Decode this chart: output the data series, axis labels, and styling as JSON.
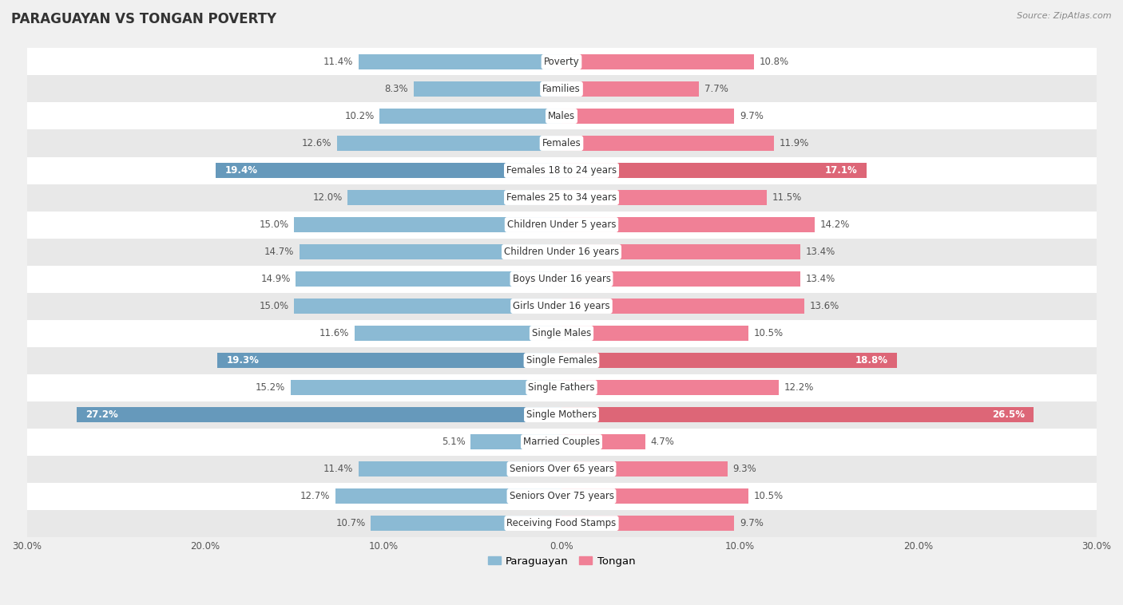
{
  "title": "PARAGUAYAN VS TONGAN POVERTY",
  "source": "Source: ZipAtlas.com",
  "categories": [
    "Poverty",
    "Families",
    "Males",
    "Females",
    "Females 18 to 24 years",
    "Females 25 to 34 years",
    "Children Under 5 years",
    "Children Under 16 years",
    "Boys Under 16 years",
    "Girls Under 16 years",
    "Single Males",
    "Single Females",
    "Single Fathers",
    "Single Mothers",
    "Married Couples",
    "Seniors Over 65 years",
    "Seniors Over 75 years",
    "Receiving Food Stamps"
  ],
  "paraguayan": [
    11.4,
    8.3,
    10.2,
    12.6,
    19.4,
    12.0,
    15.0,
    14.7,
    14.9,
    15.0,
    11.6,
    19.3,
    15.2,
    27.2,
    5.1,
    11.4,
    12.7,
    10.7
  ],
  "tongan": [
    10.8,
    7.7,
    9.7,
    11.9,
    17.1,
    11.5,
    14.2,
    13.4,
    13.4,
    13.6,
    10.5,
    18.8,
    12.2,
    26.5,
    4.7,
    9.3,
    10.5,
    9.7
  ],
  "paraguayan_color": "#8BBAD4",
  "tongan_color": "#F08096",
  "highlighted_paraguayan": [
    4,
    11,
    13
  ],
  "highlighted_tongan": [
    4,
    11,
    13
  ],
  "highlighted_paraguayan_color": "#6699BB",
  "highlighted_tongan_color": "#DD6677",
  "bar_height": 0.55,
  "max_val": 30.0,
  "background_color": "#f0f0f0",
  "row_color_light": "#ffffff",
  "row_color_dark": "#e8e8e8",
  "label_fontsize": 8.5,
  "title_fontsize": 12,
  "source_fontsize": 8,
  "legend_labels": [
    "Paraguayan",
    "Tongan"
  ],
  "tick_fontsize": 8.5
}
